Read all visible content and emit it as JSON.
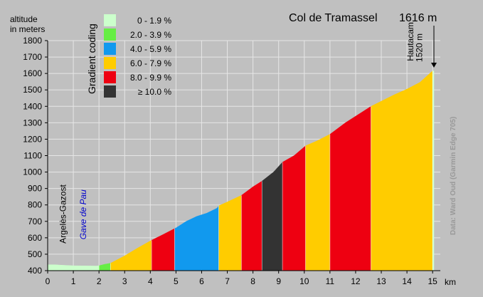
{
  "chart_data": {
    "type": "area",
    "title": "Col de Tramassel",
    "summit_altitude": "1616 m",
    "ylabel": [
      "altitude",
      "in meters"
    ],
    "xlabel": "km",
    "xlim": [
      0,
      15.3
    ],
    "ylim": [
      400,
      1800
    ],
    "x_ticks": [
      "0",
      "1",
      "2",
      "3",
      "4",
      "5",
      "6",
      "7",
      "8",
      "9",
      "10",
      "11",
      "12",
      "13",
      "14",
      "15"
    ],
    "y_ticks": [
      "400",
      "500",
      "600",
      "700",
      "800",
      "900",
      "1000",
      "1100",
      "1200",
      "1300",
      "1400",
      "1500",
      "1600",
      "1700",
      "1800"
    ],
    "grid": true,
    "legend": {
      "title": "Gradient coding",
      "placement": "top-left",
      "entries": [
        {
          "label": "0 - 1.9 %",
          "color": "#ccffcc"
        },
        {
          "label": "2.0 - 3.9 %",
          "color": "#66ee44"
        },
        {
          "label": "4.0 - 5.9 %",
          "color": "#1199ee"
        },
        {
          "label": "6.0 - 7.9 %",
          "color": "#ffcc00"
        },
        {
          "label": "8.0 - 9.9 %",
          "color": "#ee0011"
        },
        {
          "label": "≥ 10.0 %",
          "color": "#333333"
        }
      ]
    },
    "profile": [
      {
        "x": 0,
        "y": 436
      },
      {
        "x": 0.3,
        "y": 436
      },
      {
        "x": 0.5,
        "y": 434
      },
      {
        "x": 1,
        "y": 430
      },
      {
        "x": 1.5,
        "y": 429
      },
      {
        "x": 1.9,
        "y": 428
      },
      {
        "x": 2.0,
        "y": 430
      },
      {
        "x": 2.2,
        "y": 438
      },
      {
        "x": 2.45,
        "y": 445
      },
      {
        "x": 3,
        "y": 490
      },
      {
        "x": 3.5,
        "y": 537
      },
      {
        "x": 4.05,
        "y": 585
      },
      {
        "x": 4.5,
        "y": 620
      },
      {
        "x": 5,
        "y": 660
      },
      {
        "x": 5.4,
        "y": 700
      },
      {
        "x": 5.8,
        "y": 730
      },
      {
        "x": 6.2,
        "y": 750
      },
      {
        "x": 6.6,
        "y": 780
      },
      {
        "x": 6.67,
        "y": 795
      },
      {
        "x": 7,
        "y": 818
      },
      {
        "x": 7.55,
        "y": 858
      },
      {
        "x": 8,
        "y": 910
      },
      {
        "x": 8.35,
        "y": 945
      },
      {
        "x": 8.8,
        "y": 1000
      },
      {
        "x": 9.15,
        "y": 1060
      },
      {
        "x": 9.6,
        "y": 1100
      },
      {
        "x": 10.05,
        "y": 1160
      },
      {
        "x": 10.5,
        "y": 1190
      },
      {
        "x": 11,
        "y": 1230
      },
      {
        "x": 11.6,
        "y": 1300
      },
      {
        "x": 12.6,
        "y": 1400
      },
      {
        "x": 13.5,
        "y": 1470
      },
      {
        "x": 14,
        "y": 1505
      },
      {
        "x": 14.5,
        "y": 1545
      },
      {
        "x": 15.0,
        "y": 1616
      },
      {
        "x": 15.05,
        "y": 1616
      }
    ],
    "segments": [
      {
        "from": 0,
        "to": 2.0,
        "gradient_class": 0
      },
      {
        "from": 2.0,
        "to": 2.45,
        "gradient_class": 1
      },
      {
        "from": 2.45,
        "to": 4.05,
        "gradient_class": 3
      },
      {
        "from": 4.05,
        "to": 4.95,
        "gradient_class": 4
      },
      {
        "from": 4.95,
        "to": 6.67,
        "gradient_class": 2
      },
      {
        "from": 6.67,
        "to": 7.55,
        "gradient_class": 3
      },
      {
        "from": 7.55,
        "to": 8.35,
        "gradient_class": 4
      },
      {
        "from": 8.35,
        "to": 9.15,
        "gradient_class": 5
      },
      {
        "from": 9.15,
        "to": 10.05,
        "gradient_class": 4
      },
      {
        "from": 10.05,
        "to": 11.0,
        "gradient_class": 3
      },
      {
        "from": 11.0,
        "to": 12.6,
        "gradient_class": 4
      },
      {
        "from": 12.6,
        "to": 15.0,
        "gradient_class": 3
      },
      {
        "from": 15.0,
        "to": 15.05,
        "gradient_class": 0
      }
    ],
    "annotations": [
      {
        "text": "Argelès-Gazost",
        "x": 0.7,
        "y": 565,
        "style": "vertical",
        "color": "#000000"
      },
      {
        "text": "Gave de Pau",
        "x": 1.5,
        "y": 590,
        "style": "vertical-italic",
        "color": "#0000cc"
      },
      {
        "text": "Hautacam",
        "x": 14.25,
        "y": 1675,
        "style": "vertical",
        "color": "#000000"
      },
      {
        "text": "1520 m",
        "x": 14.6,
        "y": 1670,
        "style": "vertical",
        "color": "#000000"
      }
    ],
    "credit": "Data: Ward Oud (Garmin Edge 705)"
  }
}
